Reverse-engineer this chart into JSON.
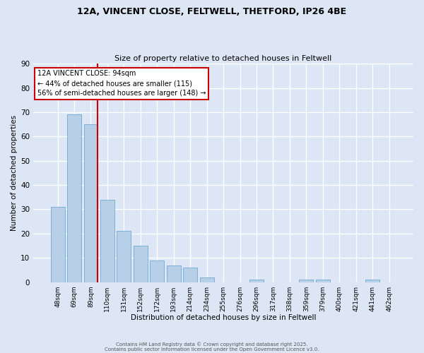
{
  "title_line1": "12A, VINCENT CLOSE, FELTWELL, THETFORD, IP26 4BE",
  "title_line2": "Size of property relative to detached houses in Feltwell",
  "xlabel": "Distribution of detached houses by size in Feltwell",
  "ylabel": "Number of detached properties",
  "categories": [
    "48sqm",
    "69sqm",
    "89sqm",
    "110sqm",
    "131sqm",
    "152sqm",
    "172sqm",
    "193sqm",
    "214sqm",
    "234sqm",
    "255sqm",
    "276sqm",
    "296sqm",
    "317sqm",
    "338sqm",
    "359sqm",
    "379sqm",
    "400sqm",
    "421sqm",
    "441sqm",
    "462sqm"
  ],
  "values": [
    31,
    69,
    65,
    34,
    21,
    15,
    9,
    7,
    6,
    2,
    0,
    0,
    1,
    0,
    0,
    1,
    1,
    0,
    0,
    1,
    0
  ],
  "bar_color": "#b8cfe8",
  "bar_edgecolor": "#6fa8d6",
  "background_color": "#dce6f5",
  "grid_color": "#ffffff",
  "vline_color": "#cc0000",
  "annotation_title": "12A VINCENT CLOSE: 94sqm",
  "annotation_line1": "← 44% of detached houses are smaller (115)",
  "annotation_line2": "56% of semi-detached houses are larger (148) →",
  "annotation_box_facecolor": "#ffffff",
  "annotation_box_edgecolor": "#cc0000",
  "ylim": [
    0,
    90
  ],
  "yticks": [
    0,
    10,
    20,
    30,
    40,
    50,
    60,
    70,
    80,
    90
  ],
  "footer_line1": "Contains HM Land Registry data © Crown copyright and database right 2025.",
  "footer_line2": "Contains public sector information licensed under the Open Government Licence v3.0."
}
